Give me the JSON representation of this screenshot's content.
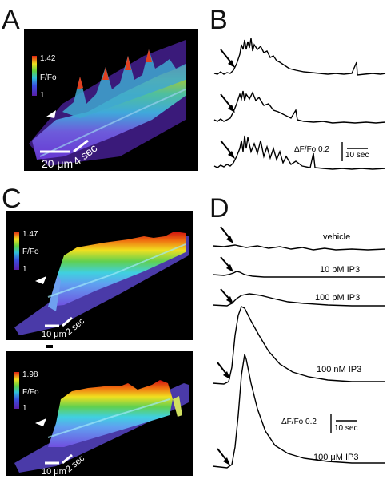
{
  "panels": {
    "a": {
      "letter": "A",
      "cbar_max": "1.42",
      "cbar_label": "F/Fo",
      "cbar_min": "1",
      "scale_x": "20 μm",
      "scale_t": "4 sec"
    },
    "b": {
      "letter": "B",
      "scale_y": "ΔF/Fo 0.2",
      "scale_t": "10 sec"
    },
    "c": {
      "letter": "C",
      "top": {
        "cbar_max": "1.47",
        "cbar_label": "F/Fo",
        "cbar_min": "1",
        "scale_x": "10 μm",
        "scale_t": "2 sec"
      },
      "bottom": {
        "cbar_max": "1.98",
        "cbar_label": "F/Fo",
        "cbar_min": "1",
        "scale_x": "10 μm",
        "scale_t": "2 sec"
      }
    },
    "d": {
      "letter": "D",
      "scale_y": "ΔF/Fo 0.2",
      "scale_t": "10 sec",
      "traces": [
        "vehicle",
        "10 pM IP3",
        "100 pM IP3",
        "100 nM IP3",
        "100 μM IP3"
      ]
    }
  },
  "colors": {
    "heat_low": "#5a2ec8",
    "heat_mid": "#3ab0e0",
    "heat_high": "#e03010",
    "background_dark": "#000000"
  }
}
